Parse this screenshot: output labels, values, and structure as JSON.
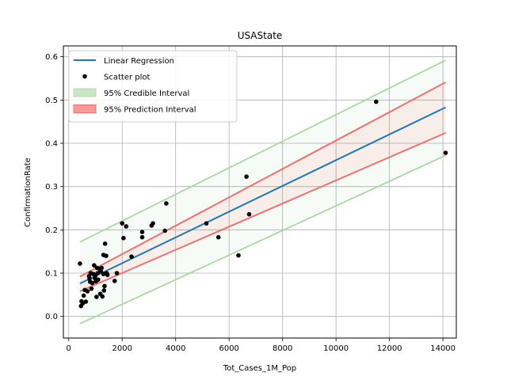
{
  "chart_data": {
    "type": "scatter",
    "title": "USAState",
    "xlabel": "Tot_Cases_1M_Pop",
    "ylabel": "ConfirmationRate",
    "xlim": [
      -200,
      14500
    ],
    "ylim": [
      -0.05,
      0.625
    ],
    "xticks": [
      0,
      2000,
      4000,
      6000,
      8000,
      10000,
      12000,
      14000
    ],
    "yticks": [
      0.0,
      0.1,
      0.2,
      0.3,
      0.4,
      0.5,
      0.6
    ],
    "grid": true,
    "legend_position": "top-left",
    "legend": [
      "Linear Regression",
      "Scatter plot",
      "95% Credible Interval",
      "95% Prediction Interval"
    ],
    "colors": {
      "regression": "#1f77b4",
      "scatter": "#000000",
      "credible": "#2ca02c",
      "prediction": "#ff0000"
    },
    "regression_line": {
      "x": [
        420,
        14100
      ],
      "y": [
        0.076,
        0.483
      ]
    },
    "credible_interval": {
      "x": [
        420,
        14100
      ],
      "upper": [
        0.172,
        0.592
      ],
      "lower": [
        -0.017,
        0.372
      ]
    },
    "prediction_interval": {
      "x": [
        420,
        14100
      ],
      "upper": [
        0.092,
        0.541
      ],
      "lower": [
        0.058,
        0.424
      ]
    },
    "points": [
      [
        420,
        0.122
      ],
      [
        460,
        0.024
      ],
      [
        480,
        0.035
      ],
      [
        520,
        0.03
      ],
      [
        560,
        0.048
      ],
      [
        600,
        0.061
      ],
      [
        640,
        0.034
      ],
      [
        700,
        0.058
      ],
      [
        760,
        0.093
      ],
      [
        780,
        0.087
      ],
      [
        800,
        0.08
      ],
      [
        820,
        0.1
      ],
      [
        850,
        0.064
      ],
      [
        880,
        0.077
      ],
      [
        920,
        0.098
      ],
      [
        950,
        0.118
      ],
      [
        980,
        0.088
      ],
      [
        1000,
        0.095
      ],
      [
        1020,
        0.081
      ],
      [
        1040,
        0.045
      ],
      [
        1060,
        0.112
      ],
      [
        1080,
        0.1
      ],
      [
        1100,
        0.085
      ],
      [
        1150,
        0.11
      ],
      [
        1180,
        0.052
      ],
      [
        1200,
        0.105
      ],
      [
        1230,
        0.112
      ],
      [
        1260,
        0.046
      ],
      [
        1300,
        0.098
      ],
      [
        1300,
        0.142
      ],
      [
        1320,
        0.06
      ],
      [
        1340,
        0.07
      ],
      [
        1360,
        0.168
      ],
      [
        1400,
        0.14
      ],
      [
        1420,
        0.1
      ],
      [
        1450,
        0.096
      ],
      [
        1720,
        0.082
      ],
      [
        1800,
        0.1
      ],
      [
        2000,
        0.215
      ],
      [
        2050,
        0.181
      ],
      [
        2150,
        0.208
      ],
      [
        2350,
        0.138
      ],
      [
        2750,
        0.195
      ],
      [
        2750,
        0.183
      ],
      [
        3100,
        0.21
      ],
      [
        3150,
        0.215
      ],
      [
        3600,
        0.198
      ],
      [
        3650,
        0.261
      ],
      [
        5150,
        0.215
      ],
      [
        5600,
        0.183
      ],
      [
        6350,
        0.141
      ],
      [
        6650,
        0.323
      ],
      [
        6750,
        0.236
      ],
      [
        11500,
        0.496
      ],
      [
        14100,
        0.378
      ]
    ]
  }
}
